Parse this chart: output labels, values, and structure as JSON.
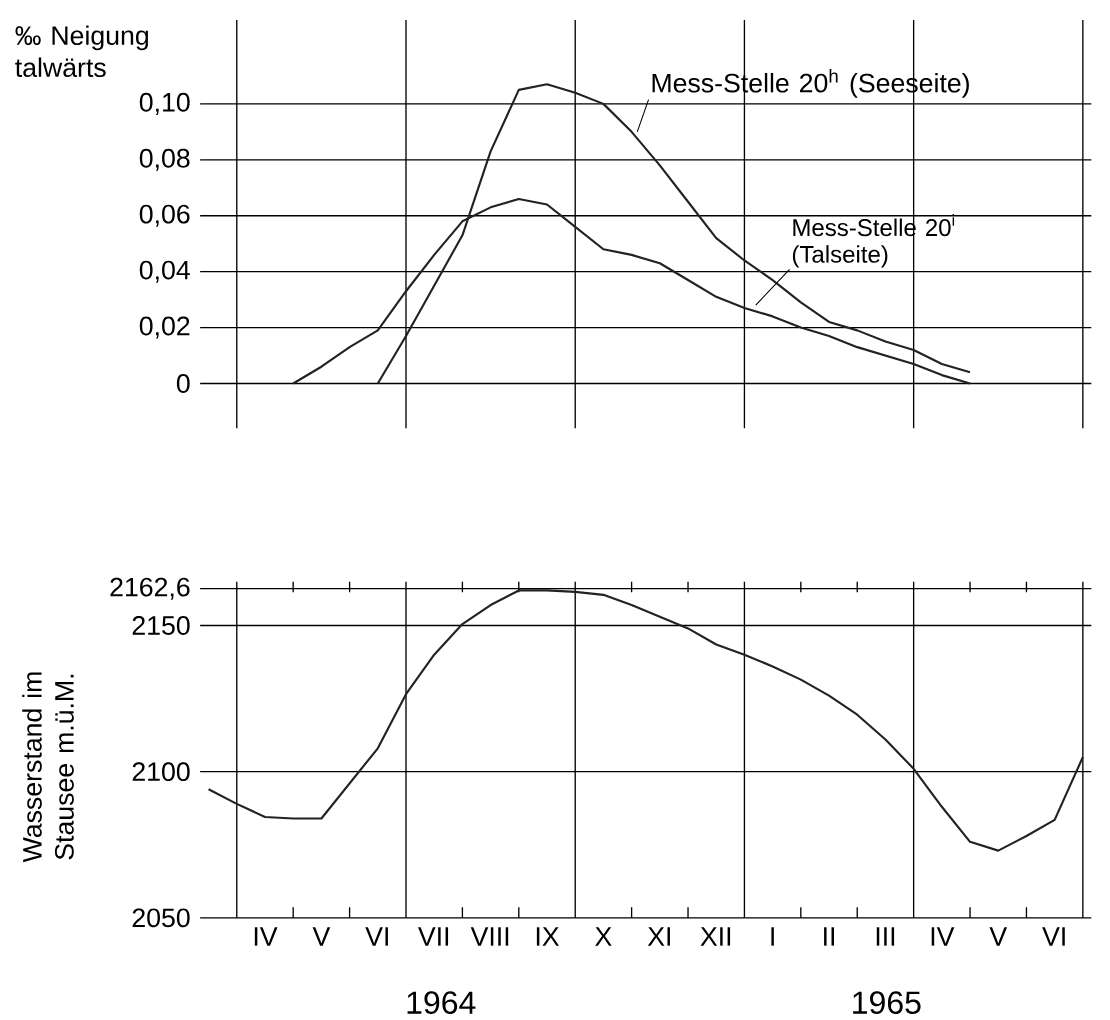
{
  "chart_data": [
    {
      "type": "line",
      "ylabel": "‰ Neigung talwärts",
      "ylim": [
        -0.016,
        0.13
      ],
      "grid": true,
      "categories": [
        null,
        null,
        null,
        null,
        null,
        null,
        null,
        null,
        null,
        null,
        null,
        null,
        null,
        null,
        null,
        null,
        null,
        null,
        null,
        null,
        null,
        null,
        null,
        null,
        null,
        null,
        null,
        null,
        null,
        null,
        null,
        null
      ],
      "yticks": [
        0,
        {
          "value": 0.02,
          "label": "0,02"
        },
        {
          "value": 0.04,
          "label": "0,04"
        },
        {
          "value": 0.06,
          "label": "0,06"
        },
        {
          "value": 0.08,
          "label": "0,08"
        },
        {
          "value": 0.1,
          "label": "0,10"
        }
      ],
      "series": [
        {
          "color": "#222222",
          "values": [
            null,
            null,
            null,
            null,
            null,
            null,
            0,
            0.017,
            0.035,
            0.053,
            0.083,
            0.105,
            0.107,
            0.104,
            0.1,
            0.09,
            0.078,
            0.065,
            0.052,
            0.044,
            0.037,
            0.029,
            0.022,
            0.019,
            0.015,
            0.012,
            0.007,
            0.004,
            null,
            null,
            null,
            null
          ]
        },
        {
          "color": "#222222",
          "values": [
            null,
            null,
            null,
            0,
            0.006,
            0.013,
            0.019,
            0.033,
            0.046,
            0.058,
            0.063,
            0.066,
            0.064,
            0.056,
            0.048,
            0.046,
            0.043,
            0.037,
            0.031,
            0.027,
            0.024,
            0.02,
            0.017,
            0.013,
            0.01,
            0.007,
            0.003,
            0,
            null,
            null,
            null,
            null
          ]
        }
      ],
      "annotations": [
        "Mess-Stelle 20$^{h}$ (Seeseite)",
        "Mess-Stelle 20$^{i}$ (Talseite)"
      ]
    },
    {
      "type": "line",
      "ylabel": "Wasserstand im Stausee m.ü.M.",
      "ylim": [
        2050,
        2165
      ],
      "grid": true,
      "categories": [
        null,
        null,
        "IV",
        null,
        "V",
        null,
        "VI",
        null,
        "VII",
        null,
        "VIII",
        null,
        "IX",
        null,
        "X",
        null,
        "XI",
        null,
        "XII",
        null,
        "I",
        null,
        "II",
        null,
        "III",
        null,
        "IV",
        null,
        "V",
        null,
        "VI",
        null
      ],
      "yticks": [
        2050,
        2100,
        2150,
        {
          "value": 2162.6,
          "label": "2162,6"
        }
      ],
      "series": [
        {
          "color": "#222222",
          "values": [
            2094,
            2089,
            2084.5,
            2084,
            2084,
            2096,
            2108,
            2126.5,
            2140,
            2150.5,
            2157,
            2162,
            2162,
            2161.5,
            2160.5,
            2157,
            2153,
            2149,
            2143.5,
            2140,
            2136,
            2131.5,
            2126,
            2119.5,
            2111,
            2101,
            2088,
            2076,
            2073,
            2078,
            2083.5,
            2105
          ]
        }
      ],
      "annotations": [
        "1964",
        "1965"
      ]
    }
  ]
}
